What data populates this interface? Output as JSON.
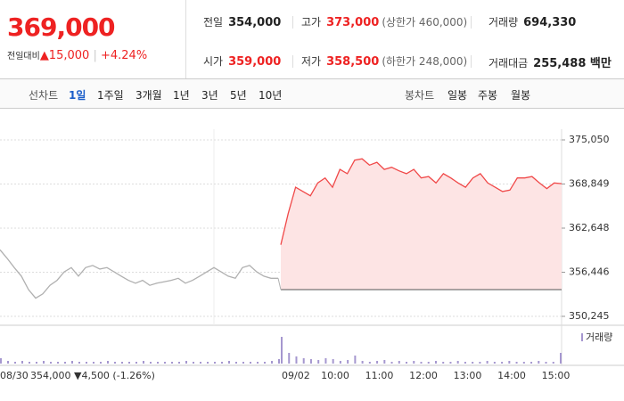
{
  "header": {
    "price": "369,000",
    "change_label": "전일대비",
    "change": "▲15,000",
    "change_pct": "+4.24%",
    "stats": [
      {
        "label": "전일",
        "value": "354,000"
      },
      {
        "label": "고가",
        "value": "373,000",
        "note": "(상한가 460,000)"
      },
      {
        "label": "거래량",
        "value": "694,330"
      },
      {
        "label": "시가",
        "value": "359,000"
      },
      {
        "label": "저가",
        "value": "358,500",
        "note": "(하한가 248,000)"
      },
      {
        "label": "거래대금",
        "value": "255,488 백만"
      }
    ]
  },
  "tabs": {
    "line_label": "선차트",
    "line": [
      "1일",
      "1주일",
      "3개월",
      "1년",
      "3년",
      "5년",
      "10년"
    ],
    "candle_label": "봉차트",
    "candle": [
      "일봉",
      "주봉",
      "월봉"
    ]
  },
  "chart_data": {
    "type": "line",
    "ylim": [
      350245,
      375050
    ],
    "yticks": [
      {
        "value": 350245,
        "label": "350,245"
      },
      {
        "value": 356446,
        "label": "356,446"
      },
      {
        "value": 362648,
        "label": "362,648"
      },
      {
        "value": 368849,
        "label": "368,849"
      },
      {
        "value": 375050,
        "label": "375,050"
      }
    ],
    "grid": true,
    "prev_close": 354000,
    "series": [
      {
        "name": "08/30",
        "color": "#b0b0b0",
        "values": [
          359600,
          358400,
          357100,
          355900,
          354000,
          352800,
          353400,
          354600,
          355300,
          356500,
          357100,
          355900,
          357100,
          357400,
          356900,
          357100,
          356500,
          355900,
          355300,
          354900,
          355300,
          354600,
          354900,
          355100,
          355300,
          355600,
          354900,
          355300,
          355900,
          356500,
          357100,
          356500,
          355900,
          355600,
          357100,
          357400,
          356500,
          355900,
          355600,
          355600
        ]
      },
      {
        "name": "09/02",
        "color": "#f04848",
        "fill": "#fde4e4",
        "values": [
          360300,
          364700,
          368400,
          367800,
          367200,
          369000,
          369700,
          368400,
          370900,
          370300,
          372200,
          372400,
          371500,
          371900,
          370900,
          371200,
          370700,
          370300,
          370900,
          369700,
          369900,
          369000,
          370300,
          369700,
          369000,
          368400,
          369700,
          370300,
          369000,
          368400,
          367800,
          368000,
          369700,
          369700,
          369900,
          369000,
          368200,
          369000,
          368900
        ]
      }
    ],
    "xticks": [
      "10:00",
      "11:00",
      "12:00",
      "13:00",
      "14:00",
      "15:00"
    ],
    "footer": "354,000 ▼4,500 (-1.26%)",
    "volume": {
      "name": "거래량",
      "color": "#a597cf",
      "ylim": [
        0,
        40
      ],
      "values": [
        30,
        12,
        8,
        6,
        5,
        4,
        6,
        5,
        3,
        4,
        9,
        3,
        2,
        3,
        4,
        2,
        3,
        2,
        3,
        2,
        2,
        3,
        2,
        2,
        3,
        2,
        2,
        2,
        3,
        2,
        2,
        3,
        2,
        2,
        2,
        3,
        2,
        2,
        12
      ],
      "prev_values": [
        6,
        3,
        2,
        3,
        2,
        2,
        3,
        2,
        2,
        2,
        3,
        2,
        2,
        2,
        2,
        3,
        2,
        2,
        2,
        2,
        3,
        2,
        2,
        2,
        2,
        2,
        3,
        2,
        2,
        2,
        2,
        2,
        3,
        2,
        2,
        2,
        2,
        2,
        3,
        5
      ]
    }
  }
}
